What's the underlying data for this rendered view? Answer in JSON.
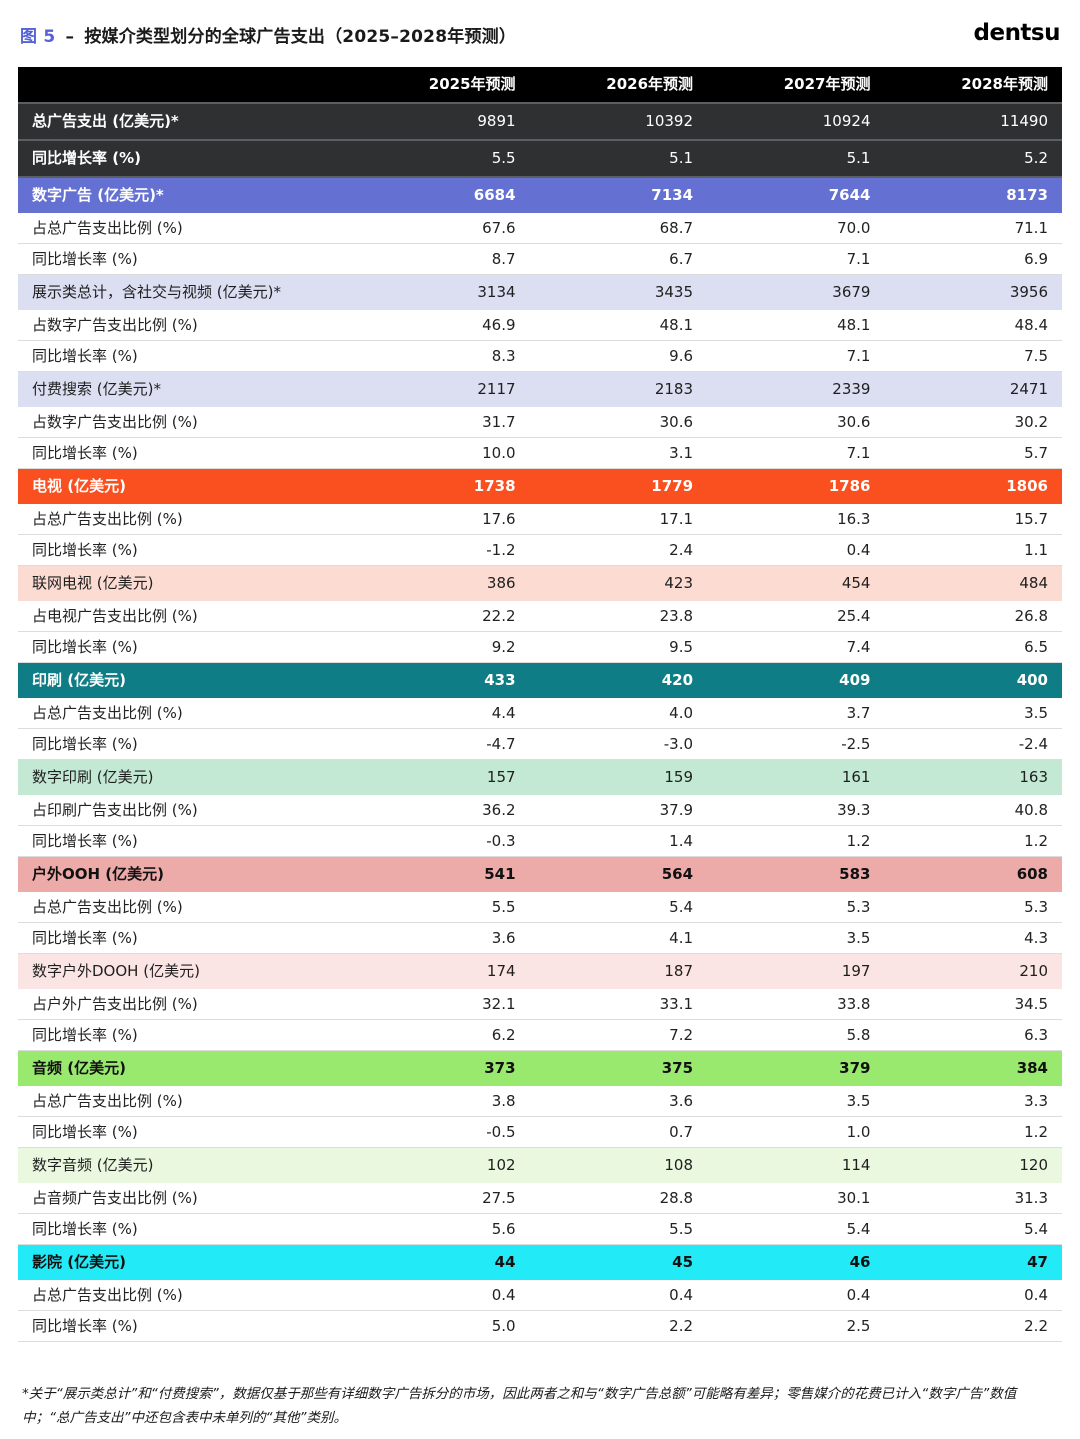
{
  "header": {
    "figure_label": "图 5",
    "separator": "–",
    "title": "按媒介类型划分的全球广告支出（2025–2028年预测）",
    "logo": "dentsu"
  },
  "chart_data": {
    "type": "table",
    "title": "按媒介类型划分的全球广告支出（2025–2028年预测）",
    "columns": [
      "2025年预测",
      "2026年预测",
      "2027年预测",
      "2028年预测"
    ],
    "rows": [
      {
        "label": "总广告支出 (亿美元)*",
        "values": [
          "9891",
          "10392",
          "10924",
          "11490"
        ],
        "style": "dark"
      },
      {
        "label": "同比增长率 (%)",
        "values": [
          "5.5",
          "5.1",
          "5.1",
          "5.2"
        ],
        "style": "dark"
      },
      {
        "label": "数字广告 (亿美元)*",
        "values": [
          "6684",
          "7134",
          "7644",
          "8173"
        ],
        "style": "purple"
      },
      {
        "label": "占总广告支出比例 (%)",
        "values": [
          "67.6",
          "68.7",
          "70.0",
          "71.1"
        ],
        "style": "plain"
      },
      {
        "label": "同比增长率 (%)",
        "values": [
          "8.7",
          "6.7",
          "7.1",
          "6.9"
        ],
        "style": "plain"
      },
      {
        "label": "展示类总计，含社交与视频 (亿美元)*",
        "values": [
          "3134",
          "3435",
          "3679",
          "3956"
        ],
        "style": "lavender"
      },
      {
        "label": "占数字广告支出比例 (%)",
        "values": [
          "46.9",
          "48.1",
          "48.1",
          "48.4"
        ],
        "style": "plain"
      },
      {
        "label": "同比增长率 (%)",
        "values": [
          "8.3",
          "9.6",
          "7.1",
          "7.5"
        ],
        "style": "plain"
      },
      {
        "label": "付费搜索 (亿美元)*",
        "values": [
          "2117",
          "2183",
          "2339",
          "2471"
        ],
        "style": "lavender"
      },
      {
        "label": "占数字广告支出比例 (%)",
        "values": [
          "31.7",
          "30.6",
          "30.6",
          "30.2"
        ],
        "style": "plain"
      },
      {
        "label": "同比增长率 (%)",
        "values": [
          "10.0",
          "3.1",
          "7.1",
          "5.7"
        ],
        "style": "plain"
      },
      {
        "label": "电视 (亿美元)",
        "values": [
          "1738",
          "1779",
          "1786",
          "1806"
        ],
        "style": "orange"
      },
      {
        "label": "占总广告支出比例 (%)",
        "values": [
          "17.6",
          "17.1",
          "16.3",
          "15.7"
        ],
        "style": "plain"
      },
      {
        "label": "同比增长率 (%)",
        "values": [
          "-1.2",
          "2.4",
          "0.4",
          "1.1"
        ],
        "style": "plain"
      },
      {
        "label": "联网电视 (亿美元)",
        "values": [
          "386",
          "423",
          "454",
          "484"
        ],
        "style": "peach"
      },
      {
        "label": "占电视广告支出比例 (%)",
        "values": [
          "22.2",
          "23.8",
          "25.4",
          "26.8"
        ],
        "style": "plain"
      },
      {
        "label": "同比增长率 (%)",
        "values": [
          "9.2",
          "9.5",
          "7.4",
          "6.5"
        ],
        "style": "plain"
      },
      {
        "label": "印刷 (亿美元)",
        "values": [
          "433",
          "420",
          "409",
          "400"
        ],
        "style": "teal"
      },
      {
        "label": "占总广告支出比例 (%)",
        "values": [
          "4.4",
          "4.0",
          "3.7",
          "3.5"
        ],
        "style": "plain"
      },
      {
        "label": "同比增长率 (%)",
        "values": [
          "-4.7",
          "-3.0",
          "-2.5",
          "-2.4"
        ],
        "style": "plain"
      },
      {
        "label": "数字印刷 (亿美元)",
        "values": [
          "157",
          "159",
          "161",
          "163"
        ],
        "style": "mint"
      },
      {
        "label": "占印刷广告支出比例 (%)",
        "values": [
          "36.2",
          "37.9",
          "39.3",
          "40.8"
        ],
        "style": "plain"
      },
      {
        "label": "同比增长率 (%)",
        "values": [
          "-0.3",
          "1.4",
          "1.2",
          "1.2"
        ],
        "style": "plain"
      },
      {
        "label": "户外OOH (亿美元)",
        "values": [
          "541",
          "564",
          "583",
          "608"
        ],
        "style": "pink"
      },
      {
        "label": "占总广告支出比例 (%)",
        "values": [
          "5.5",
          "5.4",
          "5.3",
          "5.3"
        ],
        "style": "plain"
      },
      {
        "label": "同比增长率 (%)",
        "values": [
          "3.6",
          "4.1",
          "3.5",
          "4.3"
        ],
        "style": "plain"
      },
      {
        "label": "数字户外DOOH (亿美元)",
        "values": [
          "174",
          "187",
          "197",
          "210"
        ],
        "style": "lightpink"
      },
      {
        "label": "占户外广告支出比例 (%)",
        "values": [
          "32.1",
          "33.1",
          "33.8",
          "34.5"
        ],
        "style": "plain"
      },
      {
        "label": "同比增长率 (%)",
        "values": [
          "6.2",
          "7.2",
          "5.8",
          "6.3"
        ],
        "style": "plain"
      },
      {
        "label": "音频 (亿美元)",
        "values": [
          "373",
          "375",
          "379",
          "384"
        ],
        "style": "green"
      },
      {
        "label": "占总广告支出比例 (%)",
        "values": [
          "3.8",
          "3.6",
          "3.5",
          "3.3"
        ],
        "style": "plain"
      },
      {
        "label": "同比增长率 (%)",
        "values": [
          "-0.5",
          "0.7",
          "1.0",
          "1.2"
        ],
        "style": "plain"
      },
      {
        "label": "数字音频 (亿美元)",
        "values": [
          "102",
          "108",
          "114",
          "120"
        ],
        "style": "lightgreen"
      },
      {
        "label": "占音频广告支出比例 (%)",
        "values": [
          "27.5",
          "28.8",
          "30.1",
          "31.3"
        ],
        "style": "plain"
      },
      {
        "label": "同比增长率 (%)",
        "values": [
          "5.6",
          "5.5",
          "5.4",
          "5.4"
        ],
        "style": "plain"
      },
      {
        "label": "影院 (亿美元)",
        "values": [
          "44",
          "45",
          "46",
          "47"
        ],
        "style": "cyan"
      },
      {
        "label": "占总广告支出比例 (%)",
        "values": [
          "0.4",
          "0.4",
          "0.4",
          "0.4"
        ],
        "style": "plain"
      },
      {
        "label": "同比增长率 (%)",
        "values": [
          "5.0",
          "2.2",
          "2.5",
          "2.2"
        ],
        "style": "plain"
      }
    ]
  },
  "footnote": {
    "text": "*关于“展示类总计”和“付费搜索”，数据仅基于那些有详细数字广告拆分的市场，因此两者之和与“数字广告总额”可能略有差异；零售媒介的花费已计入“数字广告”数值中；“总广告支出”中还包含表中未单列的“其他”类别。"
  },
  "colors": {
    "accent_blue": "#5661d6",
    "header_black": "#000000",
    "row_dark": "#2e3032",
    "row_purple": "#6470d2",
    "row_lavender": "#dcdef2",
    "row_orange": "#fa4f1e",
    "row_peach": "#fcdcd2",
    "row_teal": "#0e7d85",
    "row_mint": "#c3e9d5",
    "row_pink": "#ecaaa9",
    "row_lightpink": "#fbe4e4",
    "row_green": "#99e96e",
    "row_lightgreen": "#eaf8e0",
    "row_cyan": "#22ebf7"
  }
}
